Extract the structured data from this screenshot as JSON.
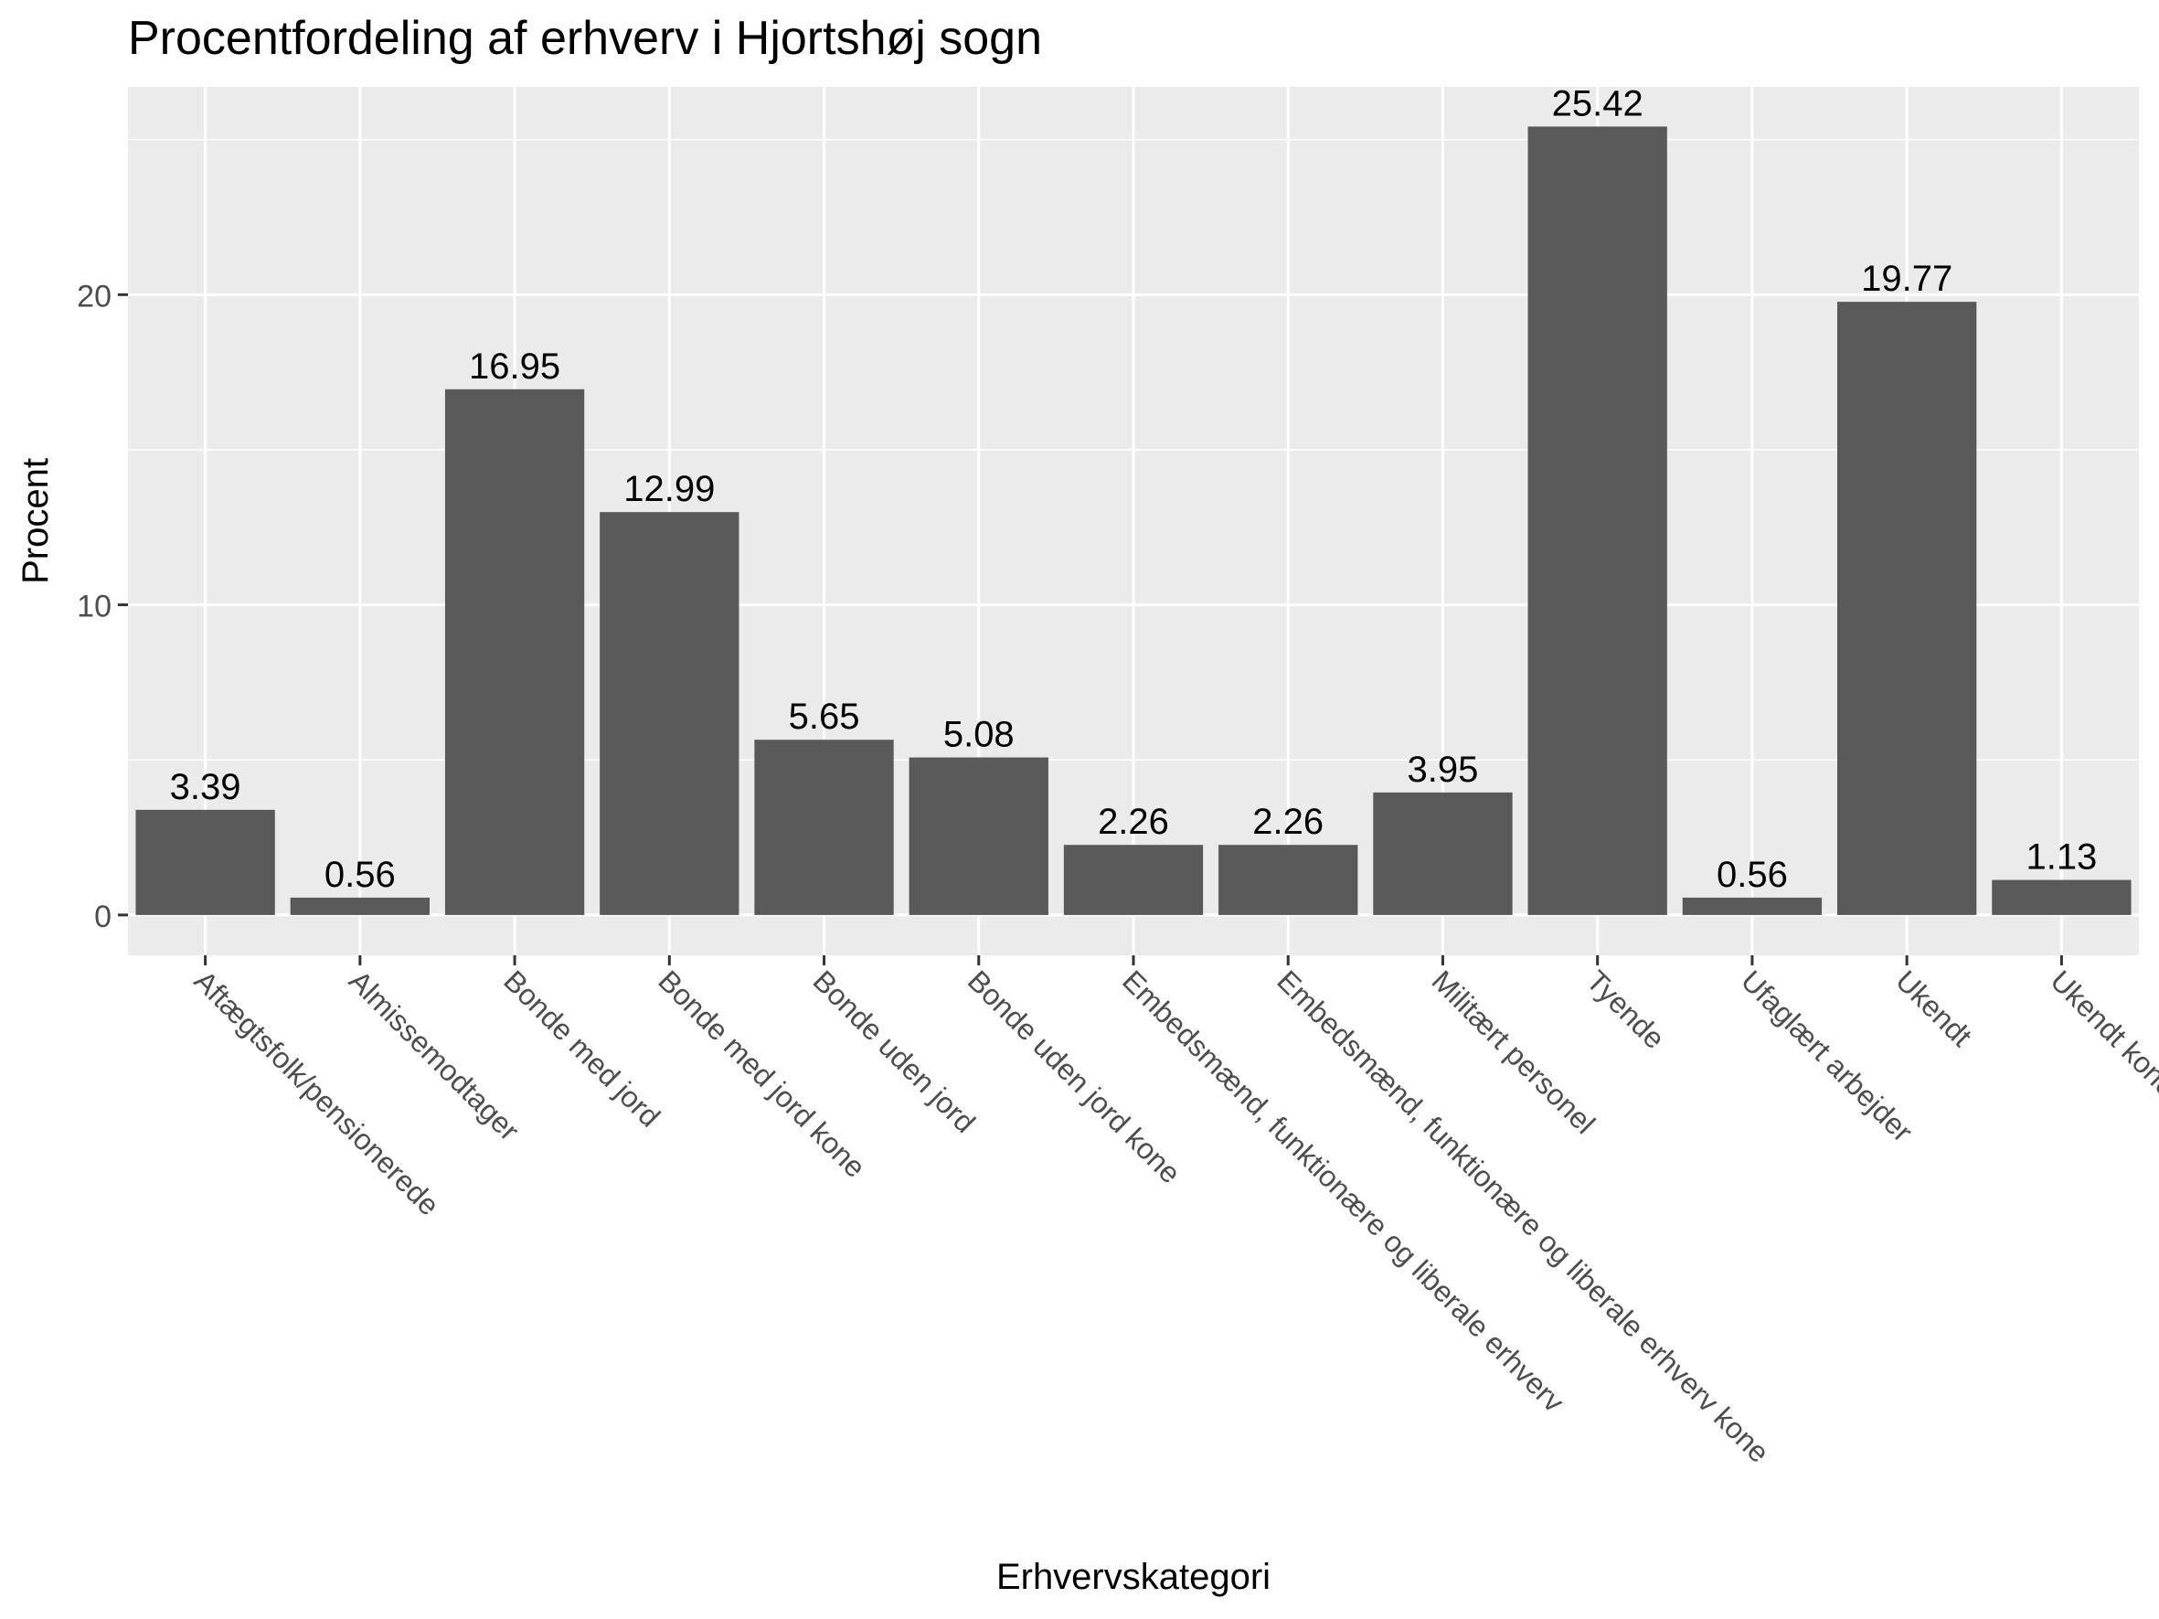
{
  "chart_data": {
    "type": "bar",
    "title": "Procentfordeling af erhverv i Hjortshøj sogn",
    "xlabel": "Erhvervskategori",
    "ylabel": "Procent",
    "categories": [
      "Aftægtsfolk/pensionerede",
      "Almissemodtager",
      "Bonde med jord",
      "Bonde med jord kone",
      "Bonde uden jord",
      "Bonde uden jord kone",
      "Embedsmænd, funktionære og liberale erhverv",
      "Embedsmænd, funktionære og liberale erhverv kone",
      "Militært personel",
      "Tyende",
      "Ufaglært arbejder",
      "Ukendt",
      "Ukendt kone"
    ],
    "values": [
      3.39,
      0.56,
      16.95,
      12.99,
      5.65,
      5.08,
      2.26,
      2.26,
      3.95,
      25.42,
      0.56,
      19.77,
      1.13
    ],
    "value_labels": [
      "3.39",
      "0.56",
      "16.95",
      "12.99",
      "5.65",
      "5.08",
      "2.26",
      "2.26",
      "3.95",
      "25.42",
      "0.56",
      "19.77",
      "1.13"
    ],
    "yticks": [
      "0",
      "10",
      "20"
    ],
    "ylim": [
      -1.3,
      26.7
    ],
    "grid": true,
    "legend": "none",
    "colors": {
      "bar": "#595959",
      "panel": "#ebebeb",
      "grid": "#ffffff",
      "axis_text": "#4d4d4d"
    }
  }
}
